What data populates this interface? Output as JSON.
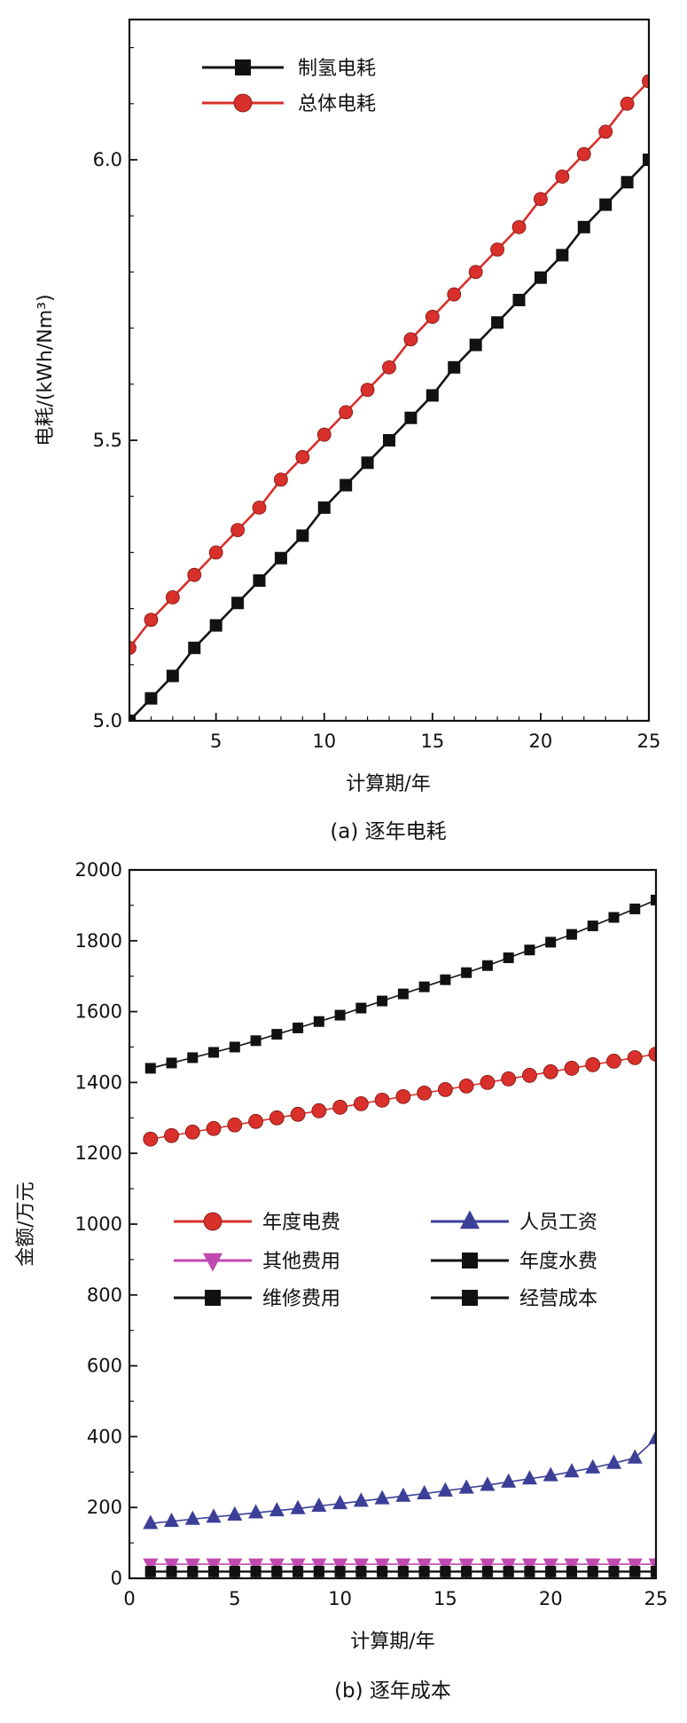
{
  "chart_data": [
    {
      "type": "line",
      "caption": "(a) 逐年电耗",
      "xlabel": "计算期/年",
      "ylabel": "电耗/(kWh/Nm³)",
      "xlim": [
        1,
        25
      ],
      "ylim": [
        5.0,
        6.25
      ],
      "xticks": [
        5,
        10,
        15,
        20,
        25
      ],
      "yticks": [
        5.0,
        5.5,
        6.0
      ],
      "ytick_labels": [
        "5.0",
        "5.5",
        "6.0"
      ],
      "grid": false,
      "legend_position": "top-left",
      "x": [
        1,
        2,
        3,
        4,
        5,
        6,
        7,
        8,
        9,
        10,
        11,
        12,
        13,
        14,
        15,
        16,
        17,
        18,
        19,
        20,
        21,
        22,
        23,
        24,
        25
      ],
      "series": [
        {
          "name": "制氢电耗",
          "color": "#111111",
          "marker": "square",
          "values": [
            5.0,
            5.04,
            5.08,
            5.13,
            5.17,
            5.21,
            5.25,
            5.29,
            5.33,
            5.38,
            5.42,
            5.46,
            5.5,
            5.54,
            5.58,
            5.63,
            5.67,
            5.71,
            5.75,
            5.79,
            5.83,
            5.88,
            5.92,
            5.96,
            6.0
          ]
        },
        {
          "name": "总体电耗",
          "color": "#d9302b",
          "marker": "circle",
          "values": [
            5.13,
            5.18,
            5.22,
            5.26,
            5.3,
            5.34,
            5.38,
            5.43,
            5.47,
            5.51,
            5.55,
            5.59,
            5.63,
            5.68,
            5.72,
            5.76,
            5.8,
            5.84,
            5.88,
            5.93,
            5.97,
            6.01,
            6.05,
            6.1,
            6.14
          ]
        }
      ]
    },
    {
      "type": "line",
      "caption": "(b) 逐年成本",
      "xlabel": "计算期/年",
      "ylabel": "金额/万元",
      "xlim": [
        0,
        25
      ],
      "ylim": [
        0,
        2000
      ],
      "xticks": [
        0,
        5,
        10,
        15,
        20,
        25
      ],
      "yticks": [
        0,
        200,
        400,
        600,
        800,
        1000,
        1200,
        1400,
        1600,
        1800,
        2000
      ],
      "grid": false,
      "legend_position": "center-left, two columns",
      "x": [
        1,
        2,
        3,
        4,
        5,
        6,
        7,
        8,
        9,
        10,
        11,
        12,
        13,
        14,
        15,
        16,
        17,
        18,
        19,
        20,
        21,
        22,
        23,
        24,
        25
      ],
      "series": [
        {
          "name": "年度电费",
          "color": "#d9302b",
          "marker": "circle",
          "values": [
            1240,
            1250,
            1260,
            1270,
            1280,
            1290,
            1300,
            1310,
            1320,
            1330,
            1340,
            1350,
            1360,
            1370,
            1380,
            1390,
            1400,
            1410,
            1420,
            1430,
            1440,
            1450,
            1460,
            1470,
            1480
          ]
        },
        {
          "name": "人员工资",
          "color": "#3b3f98",
          "marker": "triangle-up",
          "values": [
            155,
            161,
            167,
            173,
            179,
            185,
            191,
            197,
            204,
            211,
            218,
            225,
            232,
            239,
            247,
            255,
            263,
            272,
            281,
            290,
            301,
            312,
            325,
            340,
            395
          ]
        },
        {
          "name": "其他费用",
          "color": "#c04ab0",
          "marker": "triangle-down",
          "values": [
            40,
            40,
            40,
            40,
            40,
            40,
            40,
            40,
            40,
            40,
            40,
            40,
            40,
            40,
            40,
            40,
            40,
            40,
            40,
            40,
            40,
            40,
            40,
            40,
            40
          ]
        },
        {
          "name": "年度水费",
          "color": "#111111",
          "marker": "square",
          "values": [
            18,
            18,
            18,
            18,
            18,
            18,
            18,
            18,
            18,
            18,
            18,
            18,
            18,
            18,
            18,
            18,
            18,
            18,
            18,
            18,
            18,
            18,
            18,
            18,
            18
          ]
        },
        {
          "name": "维修费用",
          "color": "#111111",
          "marker": "square",
          "values": [
            20,
            20,
            20,
            20,
            20,
            20,
            20,
            20,
            20,
            20,
            20,
            20,
            20,
            20,
            20,
            20,
            20,
            20,
            20,
            20,
            20,
            20,
            20,
            20,
            20
          ]
        },
        {
          "name": "经营成本",
          "color": "#111111",
          "marker": "square",
          "values": [
            1440,
            1455,
            1470,
            1485,
            1500,
            1518,
            1536,
            1554,
            1572,
            1590,
            1610,
            1630,
            1650,
            1670,
            1690,
            1710,
            1730,
            1752,
            1774,
            1796,
            1818,
            1842,
            1866,
            1890,
            1915
          ]
        }
      ]
    }
  ]
}
